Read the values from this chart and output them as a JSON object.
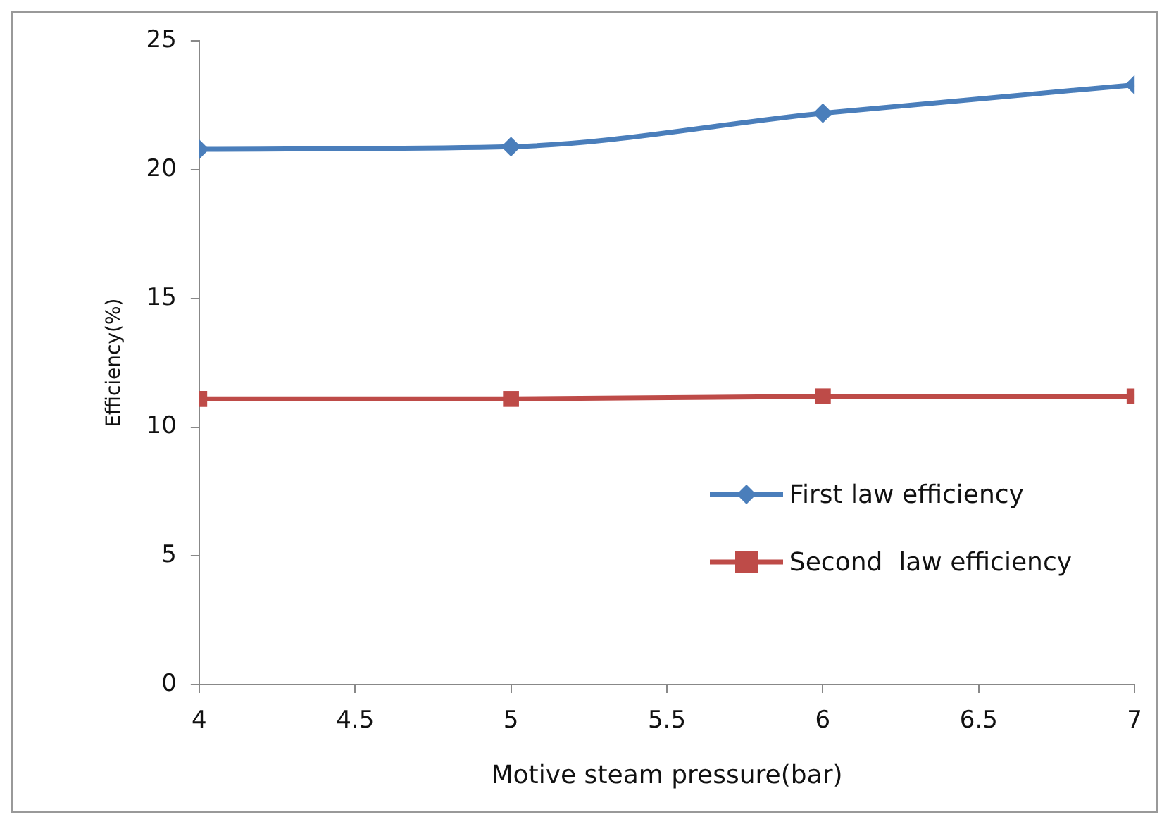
{
  "chart_data": {
    "type": "line",
    "xlabel": "Motive steam pressure(bar)",
    "ylabel": "Efficiency(%)",
    "x": [
      4,
      5,
      6,
      7
    ],
    "series": [
      {
        "name": "First law efficiency",
        "color": "#4a7ebb",
        "values": [
          20.8,
          20.9,
          22.2,
          23.3
        ],
        "marker": "diamond"
      },
      {
        "name": "Second  law efficiency",
        "color": "#be4b48",
        "values": [
          11.1,
          11.1,
          11.2,
          11.2
        ],
        "marker": "square"
      }
    ],
    "xlim": [
      4,
      7
    ],
    "xticks": [
      4,
      4.5,
      5,
      5.5,
      6,
      6.5,
      7
    ],
    "ylim": [
      0,
      25
    ],
    "yticks": [
      0,
      5,
      10,
      15,
      20,
      25
    ],
    "grid": false,
    "legend": "right"
  }
}
